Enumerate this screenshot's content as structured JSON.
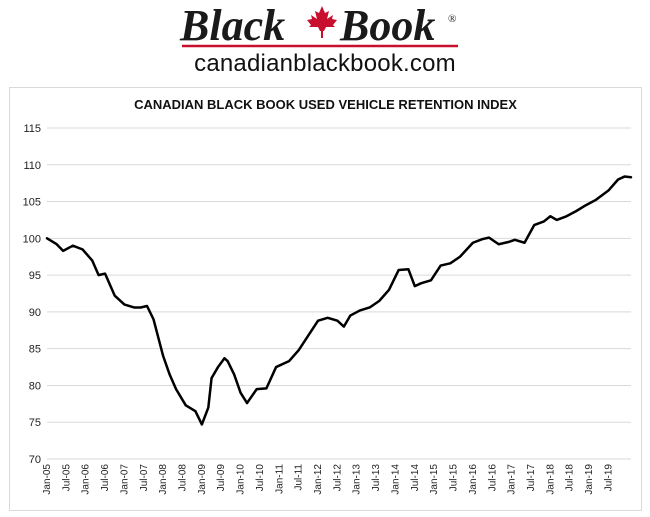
{
  "brand": {
    "logo_word1": "Black",
    "logo_word2": "Book",
    "registered": "®",
    "website": "canadianblackbook.com",
    "accent_color": "#c8102e"
  },
  "chart_data": {
    "type": "line",
    "title": "CANADIAN BLACK BOOK USED VEHICLE RETENTION INDEX",
    "xlabel": "",
    "ylabel": "",
    "ylim": [
      70,
      115
    ],
    "yticks": [
      70,
      75,
      80,
      85,
      90,
      95,
      100,
      105,
      110,
      115
    ],
    "grid": true,
    "legend": "none",
    "x_tick_labels": [
      "Jan-05",
      "Jul-05",
      "Jan-06",
      "Jul-06",
      "Jan-07",
      "Jul-07",
      "Jan-08",
      "Jul-08",
      "Jan-09",
      "Jul-09",
      "Jan-10",
      "Jul-10",
      "Jan-11",
      "Jul-11",
      "Jan-12",
      "Jul-12",
      "Jan-13",
      "Jul-13",
      "Jan-14",
      "Jul-14",
      "Jan-15",
      "Jul-15",
      "Jan-16",
      "Jul-16",
      "Jan-17",
      "Jul-17",
      "Jan-18",
      "Jul-18",
      "Jan-19",
      "Jul-19"
    ],
    "series": [
      {
        "name": "",
        "color": "#000000",
        "points": [
          [
            "Jan-05",
            100.0
          ],
          [
            "Apr-05",
            99.2
          ],
          [
            "Jun-05",
            98.3
          ],
          [
            "Sep-05",
            99.0
          ],
          [
            "Dec-05",
            98.5
          ],
          [
            "Mar-06",
            97.0
          ],
          [
            "May-06",
            95.0
          ],
          [
            "Jul-06",
            95.2
          ],
          [
            "Oct-06",
            92.2
          ],
          [
            "Jan-07",
            91.0
          ],
          [
            "Apr-07",
            90.6
          ],
          [
            "Jun-07",
            90.6
          ],
          [
            "Aug-07",
            90.8
          ],
          [
            "Oct-07",
            89.0
          ],
          [
            "Jan-08",
            84.0
          ],
          [
            "Mar-08",
            81.5
          ],
          [
            "May-08",
            79.5
          ],
          [
            "Aug-08",
            77.3
          ],
          [
            "Nov-08",
            76.5
          ],
          [
            "Jan-09",
            74.7
          ],
          [
            "Mar-09",
            77.0
          ],
          [
            "Apr-09",
            81.0
          ],
          [
            "Jun-09",
            82.5
          ],
          [
            "Aug-09",
            83.7
          ],
          [
            "Sep-09",
            83.3
          ],
          [
            "Nov-09",
            81.5
          ],
          [
            "Jan-10",
            79.0
          ],
          [
            "Mar-10",
            77.6
          ],
          [
            "Jun-10",
            79.5
          ],
          [
            "Sep-10",
            79.6
          ],
          [
            "Dec-10",
            82.5
          ],
          [
            "Apr-11",
            83.3
          ],
          [
            "Jul-11",
            84.8
          ],
          [
            "Oct-11",
            86.8
          ],
          [
            "Jan-12",
            88.8
          ],
          [
            "Apr-12",
            89.2
          ],
          [
            "Jul-12",
            88.8
          ],
          [
            "Sep-12",
            88.0
          ],
          [
            "Nov-12",
            89.5
          ],
          [
            "Feb-13",
            90.2
          ],
          [
            "May-13",
            90.6
          ],
          [
            "Aug-13",
            91.5
          ],
          [
            "Nov-13",
            93.0
          ],
          [
            "Feb-14",
            95.7
          ],
          [
            "May-14",
            95.8
          ],
          [
            "Jul-14",
            93.5
          ],
          [
            "Sep-14",
            93.9
          ],
          [
            "Dec-14",
            94.3
          ],
          [
            "Mar-15",
            96.3
          ],
          [
            "Jun-15",
            96.6
          ],
          [
            "Sep-15",
            97.5
          ],
          [
            "Jan-16",
            99.4
          ],
          [
            "Apr-16",
            99.9
          ],
          [
            "Jun-16",
            100.1
          ],
          [
            "Sep-16",
            99.2
          ],
          [
            "Dec-16",
            99.5
          ],
          [
            "Feb-17",
            99.8
          ],
          [
            "May-17",
            99.4
          ],
          [
            "Aug-17",
            101.8
          ],
          [
            "Nov-17",
            102.3
          ],
          [
            "Jan-18",
            103.0
          ],
          [
            "Mar-18",
            102.5
          ],
          [
            "Jun-18",
            103.0
          ],
          [
            "Sep-18",
            103.7
          ],
          [
            "Dec-18",
            104.5
          ],
          [
            "Mar-19",
            105.2
          ],
          [
            "Jul-19",
            106.5
          ],
          [
            "Oct-19",
            108.0
          ],
          [
            "Dec-19",
            108.4
          ],
          [
            "Feb-20",
            108.3
          ]
        ]
      }
    ]
  }
}
